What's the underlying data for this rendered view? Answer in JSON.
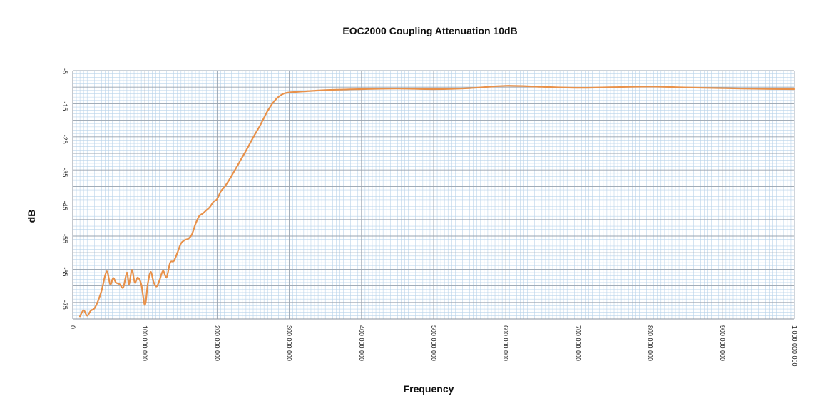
{
  "chart_data": {
    "type": "line",
    "title": "EOC2000 Coupling Attenuation 10dB",
    "xlabel": "Frequency",
    "ylabel": "dB",
    "xlim": [
      0,
      1000000000
    ],
    "ylim": [
      -80,
      -5
    ],
    "x_ticks": [
      {
        "value": 0,
        "label": "0"
      },
      {
        "value": 100000000,
        "label": "100 000 000"
      },
      {
        "value": 200000000,
        "label": "200 000 000"
      },
      {
        "value": 300000000,
        "label": "300 000 000"
      },
      {
        "value": 400000000,
        "label": "400 000 000"
      },
      {
        "value": 500000000,
        "label": "500 000 000"
      },
      {
        "value": 600000000,
        "label": "600 000 000"
      },
      {
        "value": 700000000,
        "label": "700 000 000"
      },
      {
        "value": 800000000,
        "label": "800 000 000"
      },
      {
        "value": 900000000,
        "label": "900 000 000"
      },
      {
        "value": 1000000000,
        "label": "1 000 000 000"
      }
    ],
    "y_ticks": [
      {
        "value": -5,
        "label": "-5"
      },
      {
        "value": -15,
        "label": "-15"
      },
      {
        "value": -25,
        "label": "-25"
      },
      {
        "value": -35,
        "label": "-35"
      },
      {
        "value": -45,
        "label": "-45"
      },
      {
        "value": -55,
        "label": "-55"
      },
      {
        "value": -65,
        "label": "-65"
      },
      {
        "value": -75,
        "label": "-75"
      }
    ],
    "grid": true,
    "legend": "none",
    "colors": {
      "line": "#e8914a",
      "grid_major": "#9aa4b0",
      "grid_minor": "#b9d3ea"
    },
    "series": [
      {
        "x": [
          10000000,
          15000000,
          20000000,
          25000000,
          30000000,
          35000000,
          40000000,
          45000000,
          48000000,
          52000000,
          56000000,
          60000000,
          65000000,
          70000000,
          75000000,
          78000000,
          82000000,
          86000000,
          90000000,
          95000000,
          100000000,
          104000000,
          108000000,
          112000000,
          116000000,
          120000000,
          125000000,
          130000000,
          135000000,
          140000000,
          145000000,
          150000000,
          155000000,
          160000000,
          165000000,
          170000000,
          175000000,
          180000000,
          185000000,
          190000000,
          195000000,
          200000000,
          205000000,
          210000000,
          215000000,
          220000000,
          230000000,
          240000000,
          250000000,
          260000000,
          270000000,
          280000000,
          290000000,
          300000000,
          320000000,
          350000000,
          400000000,
          450000000,
          500000000,
          550000000,
          600000000,
          650000000,
          700000000,
          750000000,
          800000000,
          850000000,
          900000000,
          950000000,
          1000000000
        ],
        "values": [
          -79.2,
          -77.4,
          -79.0,
          -77.5,
          -76.8,
          -74.6,
          -71.4,
          -66.8,
          -65.8,
          -69.6,
          -67.6,
          -69.0,
          -69.5,
          -70.5,
          -66.0,
          -69.5,
          -65.2,
          -69.0,
          -67.5,
          -69.6,
          -75.8,
          -69.4,
          -65.8,
          -68.8,
          -70.2,
          -68.5,
          -65.5,
          -67.4,
          -63.0,
          -62.5,
          -60.0,
          -57.2,
          -56.2,
          -55.8,
          -54.5,
          -51.4,
          -49.0,
          -48.2,
          -47.2,
          -46.2,
          -44.6,
          -43.8,
          -41.5,
          -40.2,
          -38.6,
          -36.8,
          -33.0,
          -29.2,
          -25.2,
          -21.4,
          -17.2,
          -14.0,
          -12.2,
          -11.6,
          -11.3,
          -10.9,
          -10.6,
          -10.4,
          -10.6,
          -10.3,
          -9.6,
          -9.9,
          -10.2,
          -10.0,
          -9.8,
          -10.1,
          -10.3,
          -10.5,
          -10.6
        ]
      }
    ]
  }
}
